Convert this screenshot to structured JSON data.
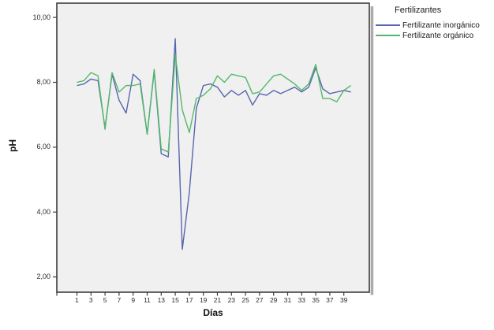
{
  "chart_data": {
    "type": "line",
    "title": "",
    "xlabel": "Días",
    "ylabel": "pH",
    "legend_title": "Fertilizantes",
    "legend_position": "top-right-outside",
    "grid": false,
    "plot_background": "#F0F0F1",
    "frame_color": "#3D3D3D",
    "shadow_color": "#ACACAC",
    "ylim": [
      1.53,
      10.44
    ],
    "y_ticks": [
      {
        "label": "10,00",
        "value": 10
      },
      {
        "label": "8,00",
        "value": 8
      },
      {
        "label": "6,00",
        "value": 6
      },
      {
        "label": "4,00",
        "value": 4
      },
      {
        "label": "2,00",
        "value": 2
      }
    ],
    "x_ticks": [
      {
        "label": "1",
        "day": 1
      },
      {
        "label": "3",
        "day": 3
      },
      {
        "label": "5",
        "day": 5
      },
      {
        "label": "7",
        "day": 7
      },
      {
        "label": "9",
        "day": 9
      },
      {
        "label": "11",
        "day": 11
      },
      {
        "label": "13",
        "day": 13
      },
      {
        "label": "15",
        "day": 15
      },
      {
        "label": "17",
        "day": 17
      },
      {
        "label": "19",
        "day": 19
      },
      {
        "label": "21",
        "day": 21
      },
      {
        "label": "23",
        "day": 23
      },
      {
        "label": "25",
        "day": 25
      },
      {
        "label": "27",
        "day": 27
      },
      {
        "label": "29",
        "day": 29
      },
      {
        "label": "31",
        "day": 31
      },
      {
        "label": "33",
        "day": 33
      },
      {
        "label": "35",
        "day": 35
      },
      {
        "label": "37",
        "day": 37
      },
      {
        "label": "39",
        "day": 39
      }
    ],
    "x": [
      1,
      2,
      3,
      4,
      5,
      6,
      7,
      8,
      9,
      10,
      11,
      12,
      13,
      14,
      15,
      16,
      17,
      18,
      19,
      20,
      21,
      22,
      23,
      24,
      25,
      26,
      27,
      28,
      29,
      30,
      31,
      32,
      33,
      34,
      35,
      36,
      37,
      38,
      39,
      40
    ],
    "series": [
      {
        "name": "Fertilizante inorgánico",
        "color": "#5766AE",
        "values": [
          7.9,
          7.95,
          8.1,
          8.05,
          6.6,
          8.25,
          7.45,
          7.05,
          8.25,
          8.05,
          6.4,
          8.35,
          5.8,
          5.7,
          9.35,
          2.85,
          4.6,
          7.2,
          7.9,
          7.95,
          7.85,
          7.55,
          7.75,
          7.6,
          7.75,
          7.3,
          7.65,
          7.6,
          7.75,
          7.65,
          7.75,
          7.85,
          7.7,
          7.85,
          8.45,
          7.8,
          7.65,
          7.7,
          7.75,
          7.7
        ]
      },
      {
        "name": "Fertilizante orgánico",
        "color": "#53B969",
        "values": [
          8.0,
          8.05,
          8.3,
          8.2,
          6.55,
          8.3,
          7.7,
          7.9,
          7.9,
          7.95,
          6.4,
          8.4,
          5.95,
          5.85,
          8.85,
          7.15,
          6.45,
          7.5,
          7.6,
          7.8,
          8.2,
          8.0,
          8.25,
          8.2,
          8.15,
          7.65,
          7.7,
          7.95,
          8.2,
          8.25,
          8.1,
          7.95,
          7.75,
          7.95,
          8.55,
          7.5,
          7.5,
          7.4,
          7.75,
          7.9
        ]
      }
    ]
  }
}
